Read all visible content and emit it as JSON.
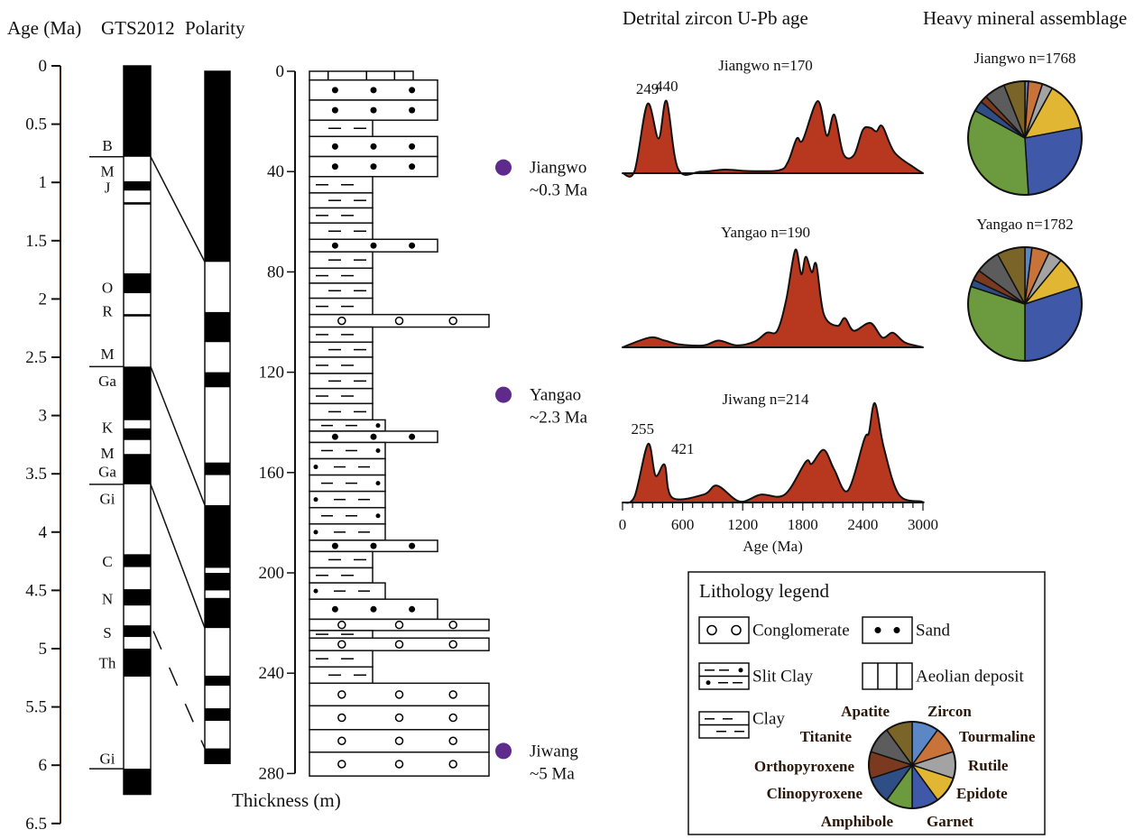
{
  "headers": {
    "age": "Age (Ma)",
    "gts": "GTS2012",
    "polarity": "Polarity",
    "zircon": "Detrital zircon U-Pb age",
    "heavy": "Heavy mineral assemblage"
  },
  "age_axis": {
    "ticks": [
      "0",
      "0.5",
      "1",
      "1.5",
      "2",
      "2.5",
      "3",
      "3.5",
      "4",
      "4.5",
      "5",
      "5.5",
      "6",
      "6.5"
    ],
    "min": 0,
    "max": 6.5,
    "color": "#3a1c0c"
  },
  "gts_column": {
    "normal_intervals_ma": [
      [
        0,
        0.78
      ],
      [
        0.99,
        1.07
      ],
      [
        1.17,
        1.19
      ],
      [
        1.78,
        1.95
      ],
      [
        2.13,
        2.15
      ],
      [
        2.58,
        3.04
      ],
      [
        3.11,
        3.21
      ],
      [
        3.33,
        3.59
      ],
      [
        4.19,
        4.3
      ],
      [
        4.49,
        4.63
      ],
      [
        4.8,
        4.9
      ],
      [
        5.0,
        5.24
      ],
      [
        6.03,
        6.25
      ]
    ],
    "bottom_ma": 6.25,
    "labels": [
      {
        "text": "B",
        "age": 0.68
      },
      {
        "text": "M",
        "age": 0.9
      },
      {
        "text": "J",
        "age": 1.04
      },
      {
        "text": "O",
        "age": 1.9
      },
      {
        "text": "R",
        "age": 2.1
      },
      {
        "text": "M",
        "age": 2.47
      },
      {
        "text": "Ga",
        "age": 2.7
      },
      {
        "text": "K",
        "age": 3.1
      },
      {
        "text": "M",
        "age": 3.32
      },
      {
        "text": "Ga",
        "age": 3.48
      },
      {
        "text": "Gi",
        "age": 3.71
      },
      {
        "text": "C",
        "age": 4.25
      },
      {
        "text": "N",
        "age": 4.57
      },
      {
        "text": "S",
        "age": 4.86
      },
      {
        "text": "Th",
        "age": 5.12
      },
      {
        "text": "Gi",
        "age": 5.94
      }
    ],
    "boundaries_ma": [
      0.78,
      2.58,
      3.59,
      6.03
    ]
  },
  "polarity_column": {
    "normal_intervals_m": [
      [
        0,
        76
      ],
      [
        96,
        108
      ],
      [
        120,
        126
      ],
      [
        156,
        161
      ],
      [
        173,
        198
      ],
      [
        200,
        207
      ],
      [
        210,
        222
      ],
      [
        241,
        245
      ],
      [
        254,
        259
      ],
      [
        270,
        276
      ]
    ],
    "bottom_m": 276
  },
  "correlations": [
    {
      "gts_ma": 0.78,
      "thickness_m": 76,
      "dashed": false
    },
    {
      "gts_ma": 2.58,
      "thickness_m": 173,
      "dashed": false
    },
    {
      "gts_ma": 3.59,
      "thickness_m": 222,
      "dashed": false
    },
    {
      "gts_ma": 4.85,
      "thickness_m": 270,
      "dashed": true
    }
  ],
  "thickness_axis": {
    "label": "Thickness (m)",
    "ticks": [
      "0",
      "40",
      "80",
      "120",
      "160",
      "200",
      "240",
      "280"
    ],
    "min": 0,
    "max": 280
  },
  "lithology_layers": [
    {
      "type": "aeolian",
      "top": 0,
      "bottom": 3.5
    },
    {
      "type": "sand",
      "top": 3.5,
      "bottom": 11.5
    },
    {
      "type": "sand",
      "top": 11.5,
      "bottom": 19.5
    },
    {
      "type": "clay",
      "top": 19.5,
      "bottom": 26
    },
    {
      "type": "sand",
      "top": 26,
      "bottom": 34
    },
    {
      "type": "sand",
      "top": 34,
      "bottom": 42
    },
    {
      "type": "clay",
      "top": 42,
      "bottom": 48.5
    },
    {
      "type": "clay",
      "top": 48.5,
      "bottom": 54.5
    },
    {
      "type": "clay",
      "top": 54.5,
      "bottom": 60.5
    },
    {
      "type": "clay",
      "top": 60.5,
      "bottom": 67
    },
    {
      "type": "sand",
      "top": 67,
      "bottom": 72
    },
    {
      "type": "clay",
      "top": 72,
      "bottom": 78.5
    },
    {
      "type": "clay",
      "top": 78.5,
      "bottom": 84.5
    },
    {
      "type": "clay",
      "top": 84.5,
      "bottom": 90.5
    },
    {
      "type": "clay",
      "top": 90.5,
      "bottom": 97
    },
    {
      "type": "conglomerate",
      "top": 97,
      "bottom": 102
    },
    {
      "type": "clay",
      "top": 102,
      "bottom": 108
    },
    {
      "type": "clay",
      "top": 108,
      "bottom": 114
    },
    {
      "type": "clay",
      "top": 114,
      "bottom": 120.5
    },
    {
      "type": "clay",
      "top": 120.5,
      "bottom": 126.5
    },
    {
      "type": "clay",
      "top": 126.5,
      "bottom": 132.5
    },
    {
      "type": "clay",
      "top": 132.5,
      "bottom": 139
    },
    {
      "type": "siltclay",
      "top": 139,
      "bottom": 143.5
    },
    {
      "type": "sand",
      "top": 143.5,
      "bottom": 148
    },
    {
      "type": "siltclay",
      "top": 148,
      "bottom": 154.5
    },
    {
      "type": "siltclay",
      "top": 154.5,
      "bottom": 161
    },
    {
      "type": "siltclay",
      "top": 161,
      "bottom": 167.5
    },
    {
      "type": "siltclay",
      "top": 167.5,
      "bottom": 174
    },
    {
      "type": "siltclay",
      "top": 174,
      "bottom": 180.5
    },
    {
      "type": "siltclay",
      "top": 180.5,
      "bottom": 187
    },
    {
      "type": "sand",
      "top": 187,
      "bottom": 191.5
    },
    {
      "type": "clay",
      "top": 191.5,
      "bottom": 198
    },
    {
      "type": "clay",
      "top": 198,
      "bottom": 204
    },
    {
      "type": "siltclay",
      "top": 204,
      "bottom": 210.5
    },
    {
      "type": "sand",
      "top": 210.5,
      "bottom": 218.5
    },
    {
      "type": "conglomerate",
      "top": 218.5,
      "bottom": 223
    },
    {
      "type": "clay",
      "top": 223,
      "bottom": 226
    },
    {
      "type": "conglomerate",
      "top": 226,
      "bottom": 231
    },
    {
      "type": "clay",
      "top": 231,
      "bottom": 237.5
    },
    {
      "type": "clay",
      "top": 237.5,
      "bottom": 244
    },
    {
      "type": "conglomerate",
      "top": 244,
      "bottom": 253
    },
    {
      "type": "conglomerate",
      "top": 253,
      "bottom": 262.5
    },
    {
      "type": "conglomerate",
      "top": 262.5,
      "bottom": 271.5
    },
    {
      "type": "conglomerate",
      "top": 271.5,
      "bottom": 281
    }
  ],
  "samples": [
    {
      "name": "Jiangwo",
      "age": "~0.3 Ma",
      "thickness_m": 38
    },
    {
      "name": "Yangao",
      "age": "~2.3 Ma",
      "thickness_m": 129
    },
    {
      "name": "Jiwang",
      "age": "~5 Ma",
      "thickness_m": 271
    }
  ],
  "sample_color": "#5e2a8c",
  "chart_data": [
    {
      "type": "area",
      "title": "Detrital zircon U-Pb age",
      "xlabel": "Age (Ma)",
      "xlim": [
        0,
        3000
      ],
      "xticks": [
        "0",
        "600",
        "1200",
        "1800",
        "2400",
        "3000"
      ],
      "fill_color": "#b8371f",
      "series": [
        {
          "name": "Jiangwo n=170",
          "peak_labels": [
            "249",
            "440"
          ],
          "peak_ages": [
            249,
            440
          ],
          "x": [
            0,
            120,
            249,
            360,
            440,
            555,
            780,
            1020,
            1260,
            1560,
            1650,
            1740,
            1800,
            1950,
            2040,
            2115,
            2205,
            2310,
            2400,
            2475,
            2535,
            2595,
            2715,
            2910,
            3000
          ],
          "y": [
            0,
            0.03,
            0.96,
            0.48,
            1.0,
            0.06,
            0.02,
            0.05,
            0.03,
            0.04,
            0.15,
            0.48,
            0.46,
            1.0,
            0.52,
            0.81,
            0.27,
            0.25,
            0.6,
            0.63,
            0.58,
            0.65,
            0.29,
            0.08,
            0
          ]
        },
        {
          "name": "Yangao n=190",
          "peak_labels": [],
          "peak_ages": [],
          "x": [
            0,
            270,
            420,
            570,
            810,
            960,
            1140,
            1320,
            1440,
            1545,
            1635,
            1725,
            1785,
            1830,
            1890,
            1935,
            2010,
            2145,
            2220,
            2310,
            2475,
            2595,
            2700,
            2820,
            3000
          ],
          "y": [
            0,
            0.1,
            0.07,
            0.03,
            0.02,
            0.07,
            0.02,
            0.06,
            0.15,
            0.17,
            0.49,
            1.0,
            0.75,
            0.93,
            0.77,
            0.85,
            0.34,
            0.22,
            0.3,
            0.17,
            0.25,
            0.1,
            0.15,
            0.05,
            0
          ]
        },
        {
          "name": "Jiwang n=214",
          "peak_labels": [
            "255",
            "421"
          ],
          "peak_ages": [
            255,
            421
          ],
          "x": [
            0,
            120,
            255,
            330,
            421,
            495,
            810,
            945,
            1170,
            1380,
            1620,
            1830,
            1890,
            2010,
            2115,
            2250,
            2415,
            2460,
            2520,
            2610,
            2760,
            2985,
            3000
          ],
          "y": [
            0,
            0.06,
            0.59,
            0.27,
            0.38,
            0.05,
            0.08,
            0.17,
            0.01,
            0.08,
            0.08,
            0.41,
            0.39,
            0.53,
            0.33,
            0.12,
            0.64,
            0.7,
            1.0,
            0.55,
            0.08,
            0.01,
            0
          ]
        }
      ]
    },
    {
      "type": "pie",
      "title": "Heavy mineral assemblage",
      "categories": [
        "Zircon",
        "Tourmaline",
        "Rutile",
        "Epidote",
        "Garnet",
        "Amphibole",
        "Clinopyroxene",
        "Orthopyroxene",
        "Titanite",
        "Apatite"
      ],
      "colors": [
        "#5b87c7",
        "#c8733a",
        "#a3a3a3",
        "#e0b632",
        "#3f59a8",
        "#6c9a3e",
        "#2f4e86",
        "#7b3a1f",
        "#5c5c5c",
        "#7a6428"
      ],
      "series": [
        {
          "name": "Jiangwo  n=1768",
          "values": [
            1,
            4,
            3,
            14,
            27,
            34,
            3,
            2,
            6,
            6
          ]
        },
        {
          "name": "Yangao  n=1782",
          "values": [
            2,
            5,
            4,
            9,
            30,
            30,
            2,
            3,
            7,
            8
          ]
        }
      ]
    }
  ],
  "legend": {
    "title": "Lithology legend",
    "items": [
      {
        "type": "conglomerate",
        "label": "Conglomerate"
      },
      {
        "type": "sand",
        "label": "Sand"
      },
      {
        "type": "siltclay",
        "label": "Slit Clay"
      },
      {
        "type": "aeolian",
        "label": "Aeolian deposit"
      },
      {
        "type": "clay",
        "label": "Clay"
      }
    ],
    "mineral_labels": [
      "Zircon",
      "Tourmaline",
      "Rutile",
      "Epidote",
      "Garnet",
      "Amphibole",
      "Clinopyroxene",
      "Orthopyroxene",
      "Titanite",
      "Apatite"
    ]
  }
}
